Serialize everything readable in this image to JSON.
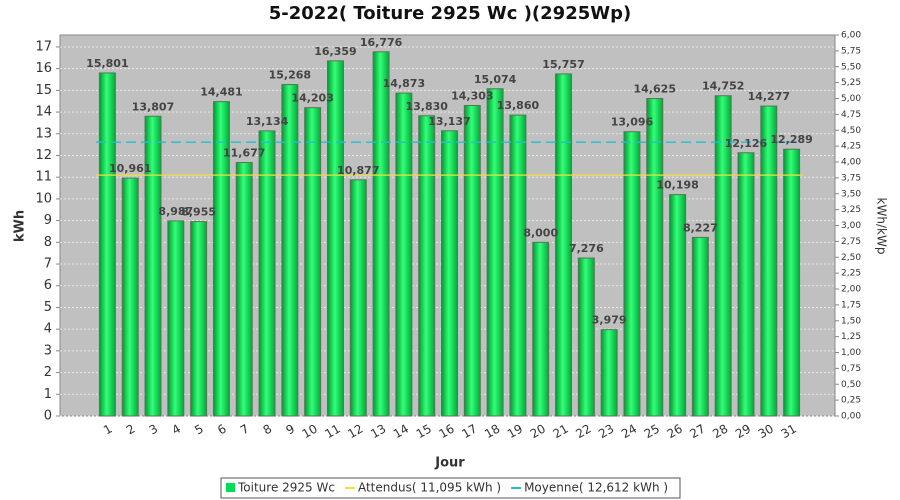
{
  "chart_data": {
    "type": "bar",
    "title": "5-2022( Toiture 2925 Wc )(2925Wp)",
    "x_label": "Jour",
    "y_label": "kWh",
    "y2_label": "kWh/kWp",
    "categories": [
      "1",
      "2",
      "3",
      "4",
      "5",
      "6",
      "7",
      "8",
      "9",
      "10",
      "11",
      "12",
      "13",
      "14",
      "15",
      "16",
      "17",
      "18",
      "19",
      "20",
      "21",
      "22",
      "23",
      "24",
      "25",
      "26",
      "27",
      "28",
      "29",
      "30",
      "31"
    ],
    "series": [
      {
        "name": "Toiture 2925 Wc",
        "color": "#00dd55",
        "values": [
          15.801,
          10.961,
          13.807,
          8.987,
          8.955,
          14.481,
          11.677,
          13.134,
          15.268,
          14.203,
          16.359,
          10.877,
          16.776,
          14.873,
          13.83,
          13.137,
          14.303,
          15.074,
          13.86,
          8.0,
          15.757,
          7.276,
          3.979,
          13.096,
          14.625,
          10.198,
          8.227,
          14.752,
          12.126,
          14.277,
          12.289
        ],
        "value_labels": [
          "15,801",
          "10,961",
          "13,807",
          "8,987",
          "8,955",
          "14,481",
          "11,677",
          "13,134",
          "15,268",
          "14,203",
          "16,359",
          "10,877",
          "16,776",
          "14,873",
          "13,830",
          "13,137",
          "14,303",
          "15,074",
          "13,860",
          "8,000",
          "15,757",
          "7,276",
          "3,979",
          "13,096",
          "14,625",
          "10,198",
          "8,227",
          "14,752",
          "12,126",
          "14,277",
          "12,289"
        ]
      }
    ],
    "reference_lines": [
      {
        "name": "Attendus( 11,095 kWh )",
        "value": 11.095,
        "color": "#f0e040"
      },
      {
        "name": "Moyenne( 12,612 kWh )",
        "value": 12.612,
        "color": "#20c0d0"
      }
    ],
    "ylim": [
      0,
      17.55
    ],
    "yticks": [
      0,
      1,
      2,
      3,
      4,
      5,
      6,
      7,
      8,
      9,
      10,
      11,
      12,
      13,
      14,
      15,
      16,
      17
    ],
    "y2lim": [
      0,
      6
    ],
    "y2ticks": [
      {
        "value": 0,
        "label": "0,00"
      },
      {
        "value": 0.25,
        "label": "0,25"
      },
      {
        "value": 0.5,
        "label": "0,50"
      },
      {
        "value": 0.75,
        "label": "0,75"
      },
      {
        "value": 1,
        "label": "1,00"
      },
      {
        "value": 1.25,
        "label": "1,25"
      },
      {
        "value": 1.5,
        "label": "1,50"
      },
      {
        "value": 1.75,
        "label": "1,75"
      },
      {
        "value": 2,
        "label": "2,00"
      },
      {
        "value": 2.25,
        "label": "2,25"
      },
      {
        "value": 2.5,
        "label": "2,50"
      },
      {
        "value": 2.75,
        "label": "2,75"
      },
      {
        "value": 3,
        "label": "3,00"
      },
      {
        "value": 3.25,
        "label": "3,25"
      },
      {
        "value": 3.5,
        "label": "3,50"
      },
      {
        "value": 3.75,
        "label": "3,75"
      },
      {
        "value": 4,
        "label": "4,00"
      },
      {
        "value": 4.25,
        "label": "4,25"
      },
      {
        "value": 4.5,
        "label": "4,50"
      },
      {
        "value": 4.75,
        "label": "4,75"
      },
      {
        "value": 5,
        "label": "5,00"
      },
      {
        "value": 5.25,
        "label": "5,25"
      },
      {
        "value": 5.5,
        "label": "5,50"
      },
      {
        "value": 5.75,
        "label": "5,75"
      },
      {
        "value": 6,
        "label": "6,00"
      }
    ],
    "grid": true
  }
}
